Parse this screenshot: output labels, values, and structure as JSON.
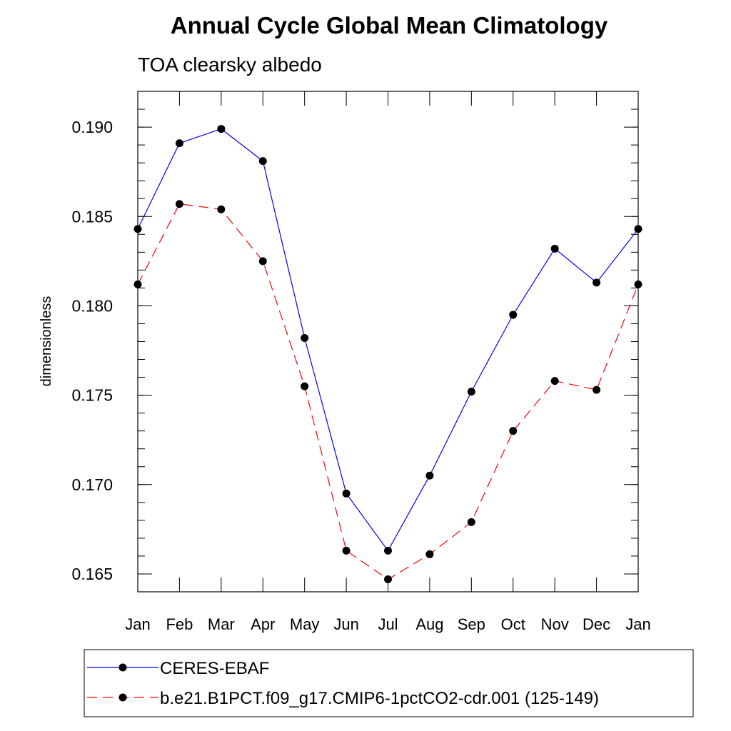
{
  "chart_data": {
    "type": "line",
    "title": "Annual Cycle Global Mean Climatology",
    "subtitle": "TOA clearsky albedo",
    "xlabel": "",
    "ylabel": "dimensionless",
    "categories": [
      "Jan",
      "Feb",
      "Mar",
      "Apr",
      "May",
      "Jun",
      "Jul",
      "Aug",
      "Sep",
      "Oct",
      "Nov",
      "Dec",
      "Jan"
    ],
    "yticks": [
      "0.165",
      "0.170",
      "0.175",
      "0.180",
      "0.185",
      "0.190"
    ],
    "ylim": [
      0.164,
      0.192
    ],
    "grid": false,
    "legend_position": "bottom",
    "series": [
      {
        "name": "CERES-EBAF",
        "color": "#0000ff",
        "line_style": "solid",
        "marker": "filled-circle",
        "values": [
          0.1843,
          0.1891,
          0.1899,
          0.1881,
          0.1782,
          0.1695,
          0.1663,
          0.1705,
          0.1752,
          0.1795,
          0.1832,
          0.1813,
          0.1843
        ]
      },
      {
        "name": "b.e21.B1PCT.f09_g17.CMIP6-1pctCO2-cdr.001 (125-149)",
        "color": "#ff0000",
        "line_style": "dashed",
        "marker": "filled-circle",
        "values": [
          0.1812,
          0.1857,
          0.1854,
          0.1825,
          0.1755,
          0.1663,
          0.1647,
          0.1661,
          0.1679,
          0.173,
          0.1758,
          0.1753,
          0.1812
        ]
      }
    ]
  }
}
